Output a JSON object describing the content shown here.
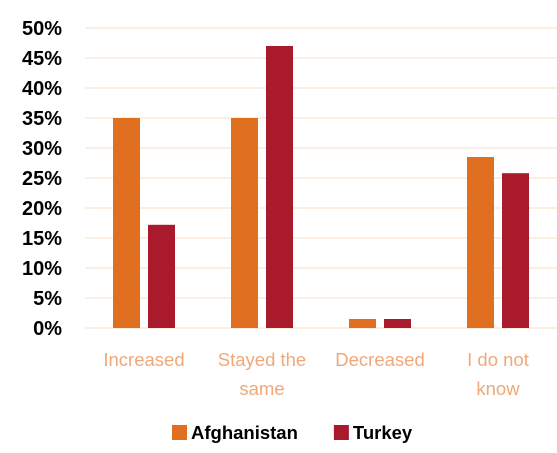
{
  "chart_data": {
    "type": "bar",
    "categories": [
      [
        "Increased"
      ],
      [
        "Stayed the",
        "same"
      ],
      [
        "Decreased"
      ],
      [
        "I do not",
        "know"
      ]
    ],
    "series": [
      {
        "name": "Afghanistan",
        "values": [
          35,
          35,
          1.5,
          28.5
        ],
        "color": "#E07020"
      },
      {
        "name": "Turkey",
        "values": [
          17.2,
          47,
          1.5,
          25.8
        ],
        "color": "#A81A2C"
      }
    ],
    "yticks": [
      "0%",
      "5%",
      "10%",
      "15%",
      "20%",
      "25%",
      "30%",
      "35%",
      "40%",
      "45%",
      "50%"
    ],
    "ylim": [
      0,
      50
    ],
    "ylabel": "",
    "xlabel": "",
    "title": "",
    "grid": true,
    "grid_color": "#F7DCC6",
    "tick_label_color": "#F0A878",
    "legend_position": "bottom"
  }
}
